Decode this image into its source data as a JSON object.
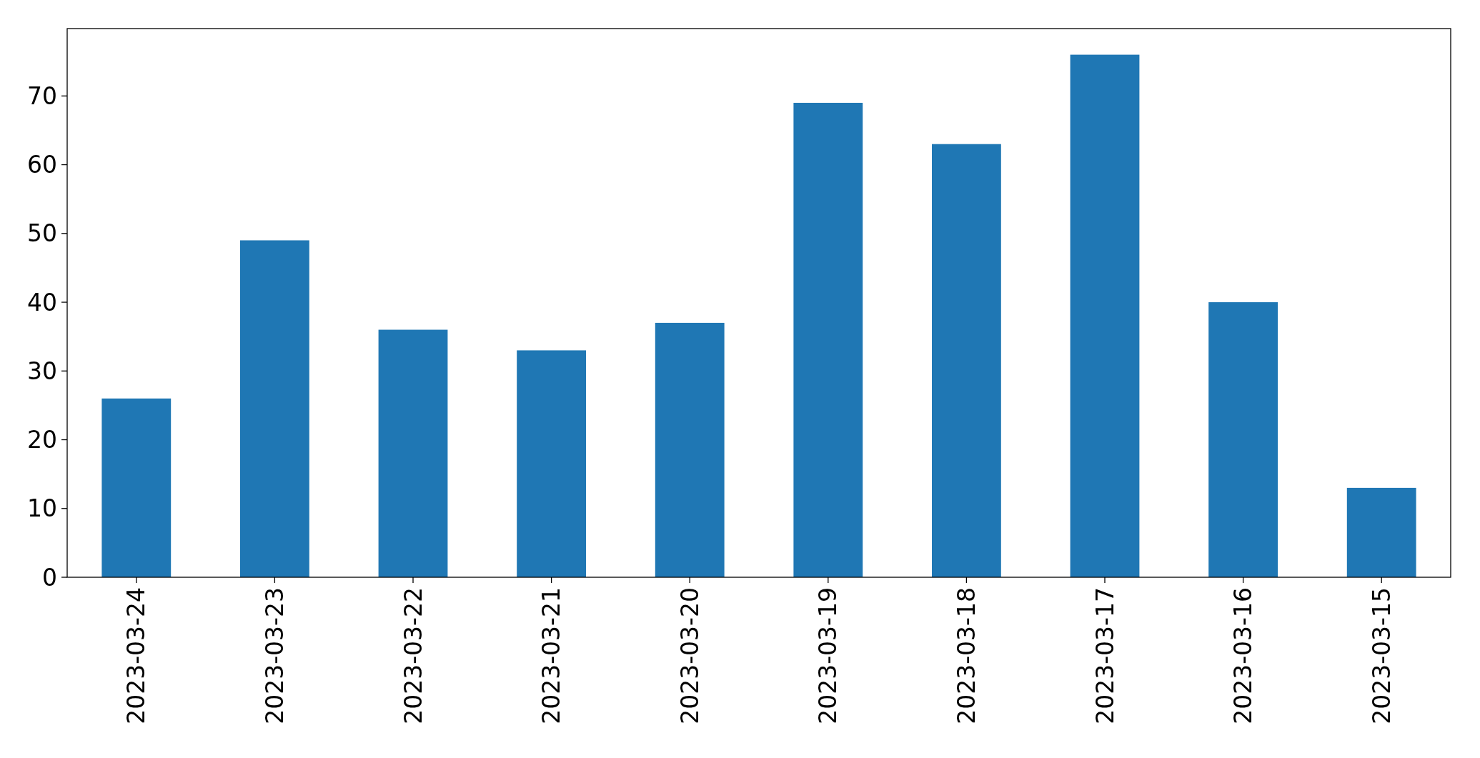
{
  "chart_data": {
    "type": "bar",
    "categories": [
      "2023-03-24",
      "2023-03-23",
      "2023-03-22",
      "2023-03-21",
      "2023-03-20",
      "2023-03-19",
      "2023-03-18",
      "2023-03-17",
      "2023-03-16",
      "2023-03-15"
    ],
    "values": [
      26,
      49,
      36,
      33,
      37,
      69,
      63,
      76,
      40,
      13
    ],
    "color": "#1f77b4",
    "ylim": [
      0,
      79.8
    ],
    "yticks": [
      0,
      10,
      20,
      30,
      40,
      50,
      60,
      70
    ]
  }
}
